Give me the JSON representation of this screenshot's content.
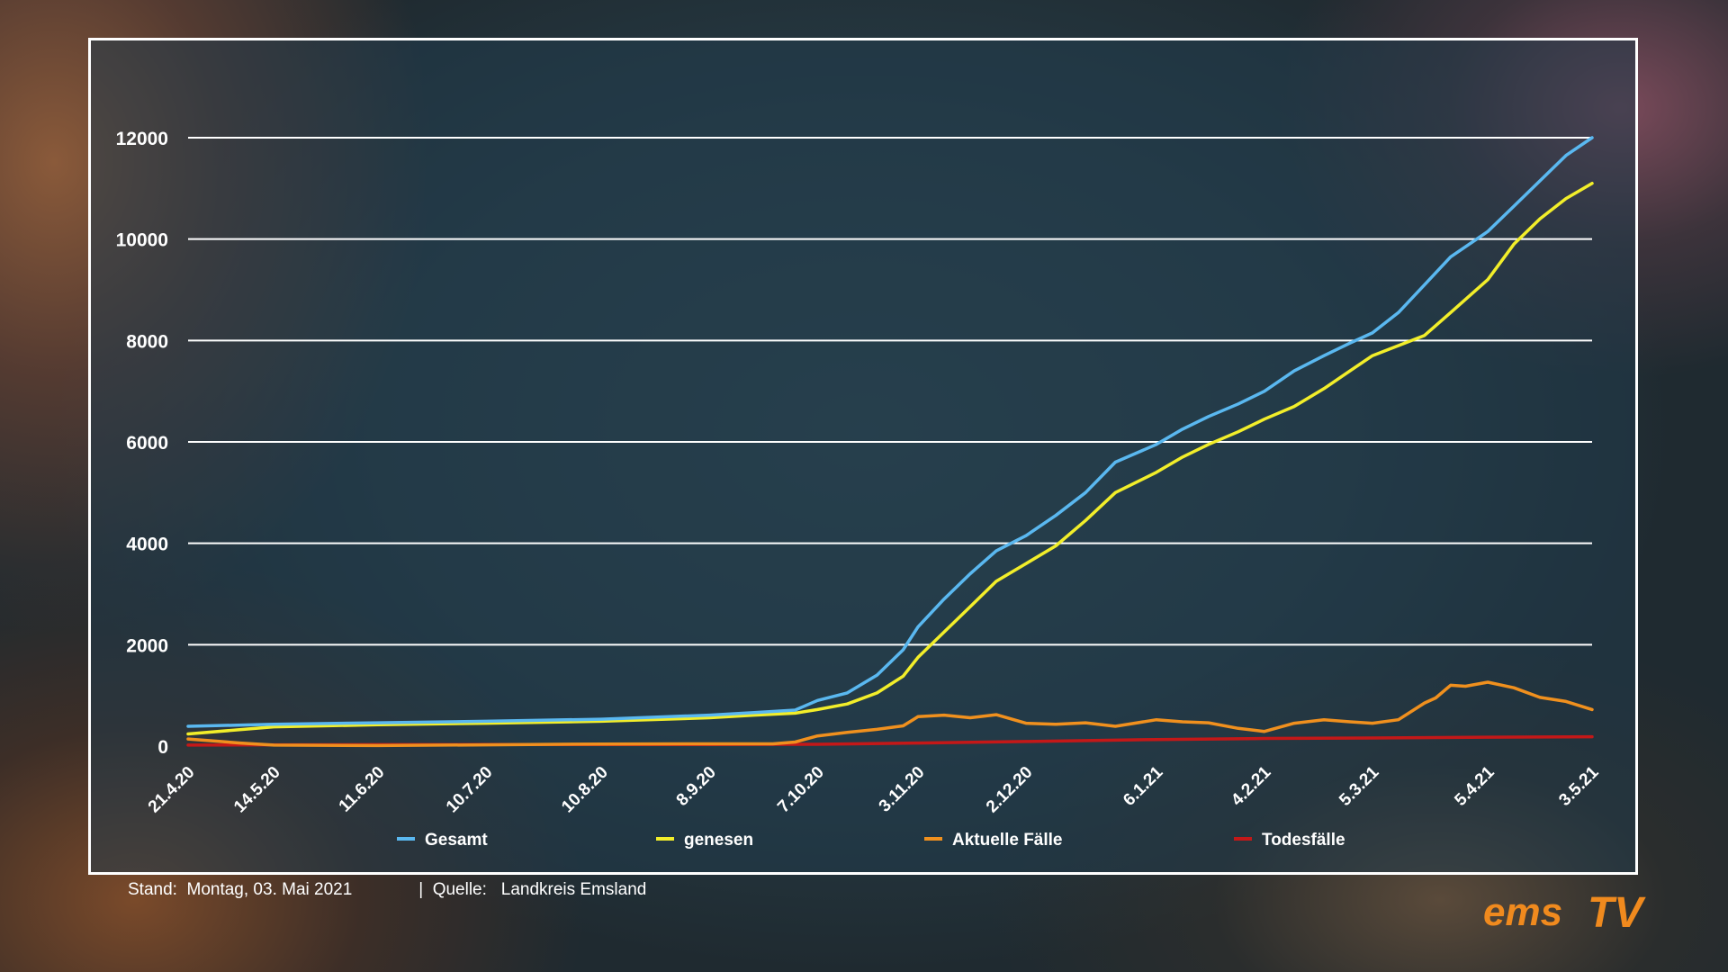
{
  "chart_data": {
    "type": "line",
    "title": "",
    "xlabel": "",
    "ylabel": "",
    "ylim": [
      0,
      12000
    ],
    "yticks": [
      0,
      2000,
      4000,
      6000,
      8000,
      10000,
      12000
    ],
    "xticks": [
      "21.4.20",
      "14.5.20",
      "11.6.20",
      "10.7.20",
      "10.8.20",
      "8.9.20",
      "7.10.20",
      "3.11.20",
      "2.12.20",
      "6.1.21",
      "4.2.21",
      "5.3.21",
      "5.4.21",
      "3.5.21"
    ],
    "grid": "horizontal",
    "legend_position": "bottom",
    "series": [
      {
        "name": "Gesamt",
        "color": "#5ab8f0",
        "x": [
          "21.4.20",
          "14.5.20",
          "11.6.20",
          "10.7.20",
          "10.8.20",
          "8.9.20",
          "20.9.20",
          "1.10.20",
          "7.10.20",
          "15.10.20",
          "23.10.20",
          "30.10.20",
          "3.11.20",
          "10.11.20",
          "17.11.20",
          "24.11.20",
          "2.12.20",
          "10.12.20",
          "18.12.20",
          "26.12.20",
          "6.1.21",
          "13.1.21",
          "20.1.21",
          "28.1.21",
          "4.2.21",
          "12.2.21",
          "20.2.21",
          "27.2.21",
          "5.3.21",
          "12.3.21",
          "19.3.21",
          "26.3.21",
          "5.4.21",
          "12.4.21",
          "19.4.21",
          "26.4.21",
          "3.5.21"
        ],
        "values": [
          390,
          430,
          460,
          490,
          530,
          610,
          660,
          710,
          900,
          1050,
          1400,
          1900,
          2350,
          2900,
          3400,
          3850,
          4150,
          4550,
          5000,
          5600,
          5950,
          6250,
          6500,
          6750,
          7000,
          7400,
          7700,
          7950,
          8150,
          8550,
          9100,
          9650,
          10150,
          10650,
          11150,
          11650,
          12000
        ]
      },
      {
        "name": "genesen",
        "color": "#f2ee2a",
        "x": [
          "21.4.20",
          "14.5.20",
          "11.6.20",
          "10.7.20",
          "10.8.20",
          "8.9.20",
          "20.9.20",
          "1.10.20",
          "7.10.20",
          "15.10.20",
          "23.10.20",
          "30.10.20",
          "3.11.20",
          "10.11.20",
          "17.11.20",
          "24.11.20",
          "2.12.20",
          "10.12.20",
          "18.12.20",
          "26.12.20",
          "6.1.21",
          "13.1.21",
          "20.1.21",
          "28.1.21",
          "4.2.21",
          "12.2.21",
          "20.2.21",
          "27.2.21",
          "5.3.21",
          "12.3.21",
          "19.3.21",
          "26.3.21",
          "5.4.21",
          "12.4.21",
          "19.4.21",
          "26.4.21",
          "3.5.21"
        ],
        "values": [
          240,
          380,
          420,
          450,
          490,
          560,
          610,
          650,
          720,
          830,
          1050,
          1380,
          1750,
          2250,
          2750,
          3250,
          3600,
          3950,
          4450,
          5000,
          5400,
          5700,
          5950,
          6200,
          6450,
          6700,
          7050,
          7400,
          7700,
          7900,
          8100,
          8550,
          9200,
          9900,
          10400,
          10800,
          11100
        ]
      },
      {
        "name": "Aktuelle Fälle",
        "color": "#f0901e",
        "x": [
          "21.4.20",
          "5.5.20",
          "14.5.20",
          "11.6.20",
          "10.7.20",
          "10.8.20",
          "8.9.20",
          "25.9.20",
          "1.10.20",
          "7.10.20",
          "15.10.20",
          "23.10.20",
          "30.10.20",
          "3.11.20",
          "10.11.20",
          "17.11.20",
          "24.11.20",
          "2.12.20",
          "10.12.20",
          "18.12.20",
          "26.12.20",
          "6.1.21",
          "13.1.21",
          "20.1.21",
          "28.1.21",
          "4.2.21",
          "12.2.21",
          "20.2.21",
          "27.2.21",
          "5.3.21",
          "12.3.21",
          "19.3.21",
          "22.3.21",
          "26.3.21",
          "30.3.21",
          "5.4.21",
          "12.4.21",
          "19.4.21",
          "26.4.21",
          "3.5.21"
        ],
        "values": [
          140,
          60,
          20,
          10,
          25,
          40,
          45,
          45,
          80,
          200,
          270,
          330,
          400,
          580,
          610,
          560,
          620,
          450,
          430,
          460,
          390,
          520,
          480,
          460,
          350,
          290,
          450,
          520,
          480,
          450,
          520,
          850,
          950,
          1200,
          1180,
          1260,
          1150,
          960,
          880,
          720
        ]
      },
      {
        "name": "Todesfälle",
        "color": "#c41818",
        "x": [
          "21.4.20",
          "14.5.20",
          "11.6.20",
          "10.7.20",
          "10.8.20",
          "8.9.20",
          "7.10.20",
          "3.11.20",
          "2.12.20",
          "6.1.21",
          "4.2.21",
          "5.3.21",
          "5.4.21",
          "3.5.21"
        ],
        "values": [
          20,
          25,
          28,
          30,
          30,
          32,
          35,
          60,
          90,
          130,
          150,
          160,
          175,
          185
        ]
      }
    ]
  },
  "footer": {
    "stand_label": "Stand:",
    "stand_value": "Montag, 03. Mai 2021",
    "separator": "|",
    "quelle_label": "Quelle:",
    "quelle_value": "Landkreis Emsland"
  },
  "logo": {
    "text_ems": "ems",
    "text_tv": "TV",
    "color": "#f08a1e"
  }
}
